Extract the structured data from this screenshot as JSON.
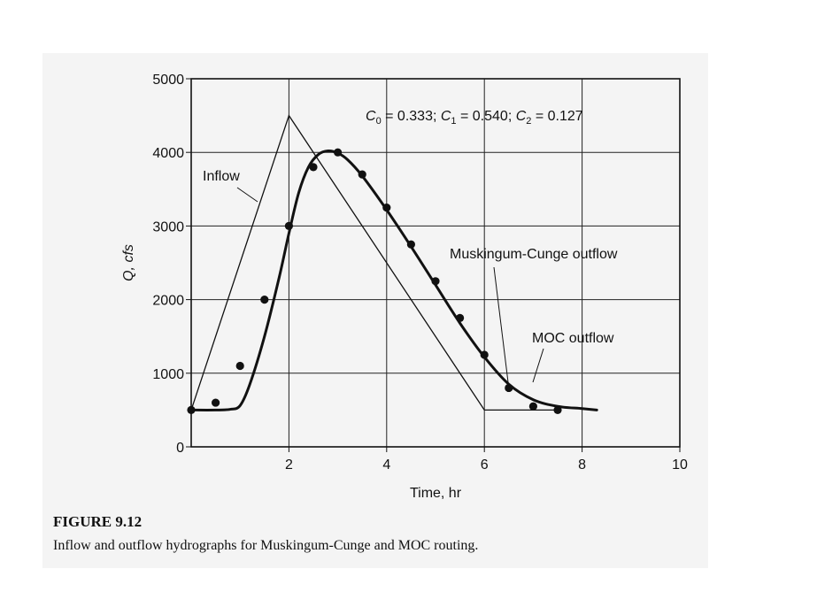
{
  "figure": {
    "label": "FIGURE 9.12",
    "caption": "Inflow and outflow hydrographs for Muskingum-Cunge and MOC routing."
  },
  "chart_data": {
    "type": "line",
    "xlabel": "Time, hr",
    "ylabel": "Q, cfs",
    "xlim": [
      0,
      10
    ],
    "ylim": [
      0,
      5000
    ],
    "x_ticks": [
      2,
      4,
      6,
      8,
      10
    ],
    "y_ticks": [
      0,
      1000,
      2000,
      3000,
      4000,
      5000
    ],
    "grid": true,
    "annotation_coefficients": "C0 = 0.333; C1 = 0.540; C2 = 0.127",
    "series": [
      {
        "name": "Inflow",
        "style": "thin-line",
        "x": [
          0,
          2,
          6,
          7.5
        ],
        "y": [
          500,
          4500,
          500,
          500
        ]
      },
      {
        "name": "Muskingum-Cunge outflow",
        "style": "points",
        "x": [
          0,
          0.5,
          1.0,
          1.5,
          2.0,
          2.5,
          3.0,
          3.5,
          4.0,
          4.5,
          5.0,
          5.5,
          6.0,
          6.5,
          7.0,
          7.5
        ],
        "y": [
          500,
          600,
          1100,
          2000,
          3000,
          3800,
          4000,
          3700,
          3250,
          2750,
          2250,
          1750,
          1250,
          800,
          550,
          500
        ]
      },
      {
        "name": "MOC outflow",
        "style": "thick-line",
        "x": [
          0,
          0.5,
          0.8,
          1.0,
          1.2,
          1.5,
          1.8,
          2.0,
          2.2,
          2.4,
          2.6,
          2.8,
          3.0,
          3.2,
          3.5,
          4.0,
          4.5,
          5.0,
          5.5,
          6.0,
          6.5,
          7.0,
          7.5,
          8.0,
          8.3
        ],
        "y": [
          500,
          500,
          510,
          560,
          850,
          1500,
          2300,
          2900,
          3450,
          3800,
          3970,
          4020,
          3990,
          3900,
          3680,
          3220,
          2720,
          2200,
          1680,
          1220,
          850,
          640,
          550,
          520,
          500
        ]
      }
    ],
    "labels": {
      "inflow": "Inflow",
      "mc": "Muskingum-Cunge outflow",
      "moc": "MOC outflow"
    }
  },
  "colors": {
    "ink": "#111111",
    "panel": "#f4f4f4",
    "grid": "#222222"
  }
}
